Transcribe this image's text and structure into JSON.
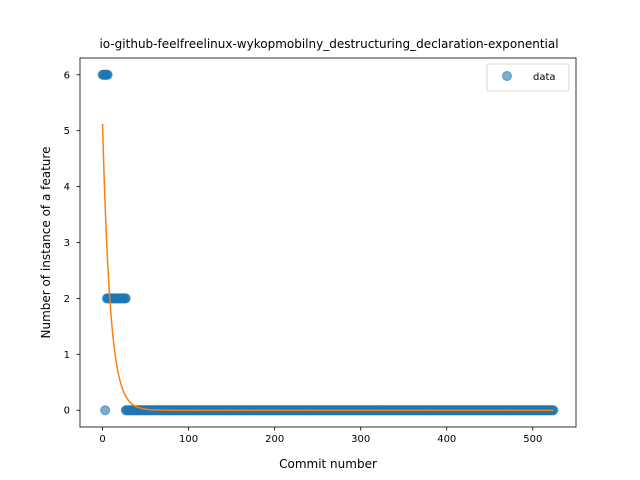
{
  "chart_data": {
    "type": "scatter",
    "title": "io-github-feelfreelinux-wykopmobilny_destructuring_declaration-exponential",
    "xlabel": "Commit number",
    "ylabel": "Number of instance of a feature",
    "xlim": [
      -26.2,
      550.2
    ],
    "ylim": [
      -0.3,
      6.3
    ],
    "xticks": [
      0,
      100,
      200,
      300,
      400,
      500
    ],
    "yticks": [
      0,
      1,
      2,
      3,
      4,
      5,
      6
    ],
    "legend": {
      "position": "top-right",
      "entries": [
        "data"
      ]
    },
    "series": [
      {
        "name": "data",
        "kind": "scatter",
        "color": "#1f77b4",
        "segments": [
          {
            "x_start": 0,
            "x_end": 6,
            "y": 6
          },
          {
            "x_start": 3,
            "x_end": 3,
            "y": 0
          },
          {
            "x_start": 5,
            "x_end": 27,
            "y": 2
          },
          {
            "x_start": 27,
            "x_end": 524,
            "y": 0
          }
        ]
      },
      {
        "kind": "line",
        "color": "#ff7f0e",
        "model": "exponential",
        "a": 5.12,
        "b": 0.112,
        "x_range": [
          0,
          524
        ]
      }
    ]
  }
}
